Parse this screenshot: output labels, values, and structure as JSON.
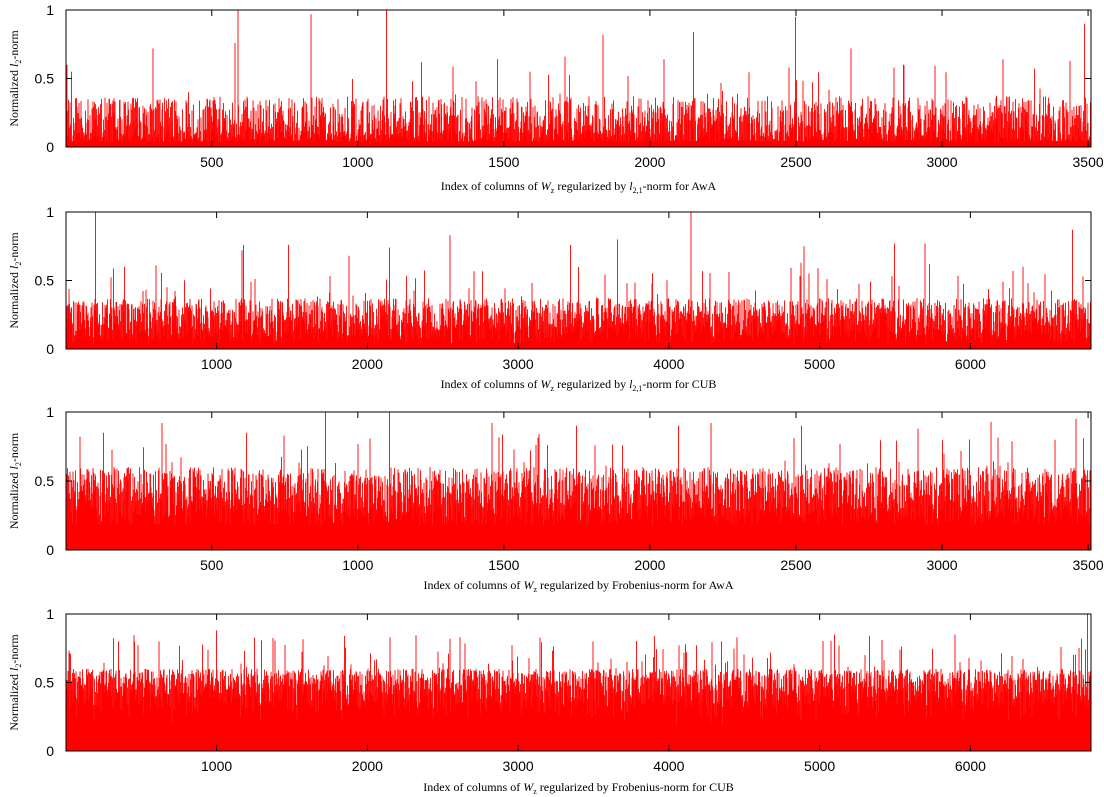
{
  "chart_data": [
    {
      "type": "bar",
      "ylabel": {
        "pre": "Normalized ",
        "var": "l",
        "sub": "2",
        "post": "-norm"
      },
      "xlabel": {
        "pre": "Index of columns of ",
        "var": "W",
        "sub": "z",
        "mid": " regularized by ",
        "var2": "l",
        "sub2": "2,1",
        "post": "-norm for AwA"
      },
      "xlim": [
        1,
        3510
      ],
      "ylim": [
        0,
        1
      ],
      "xticks": [
        "500",
        "1000",
        "1500",
        "2000",
        "2500",
        "3000",
        "3500"
      ],
      "yticks": [
        "0",
        "0.5",
        "1"
      ],
      "color": "#ff0000",
      "profile": "sparse",
      "n": 3510,
      "peaks": [
        [
          5,
          0.6
        ],
        [
          20,
          0.55
        ],
        [
          300,
          0.72
        ],
        [
          590,
          1.0
        ],
        [
          580,
          0.76
        ],
        [
          840,
          0.97
        ],
        [
          1100,
          1.0
        ],
        [
          1220,
          0.62
        ],
        [
          1480,
          0.64
        ],
        [
          1590,
          0.55
        ],
        [
          1710,
          0.66
        ],
        [
          1840,
          0.82
        ],
        [
          2050,
          0.64
        ],
        [
          2150,
          0.84
        ],
        [
          2500,
          0.95
        ],
        [
          2690,
          0.72
        ],
        [
          2870,
          0.6
        ],
        [
          3210,
          0.64
        ],
        [
          3440,
          0.63
        ],
        [
          3490,
          0.9
        ]
      ]
    },
    {
      "type": "bar",
      "ylabel": {
        "pre": "Normalized ",
        "var": "l",
        "sub": "2",
        "post": "-norm"
      },
      "xlabel": {
        "pre": "Index of columns of ",
        "var": "W",
        "sub": "z",
        "mid": " regularized by ",
        "var2": "l",
        "sub2": "2,1",
        "post": "-norm for CUB"
      },
      "xlim": [
        1,
        6800
      ],
      "ylim": [
        0,
        1
      ],
      "xticks": [
        "1000",
        "2000",
        "3000",
        "4000",
        "5000",
        "6000"
      ],
      "yticks": [
        "0",
        "0.5",
        "1"
      ],
      "color": "#ff0000",
      "profile": "sparse",
      "n": 6800,
      "peaks": [
        [
          200,
          1.0
        ],
        [
          390,
          0.6
        ],
        [
          600,
          0.61
        ],
        [
          1180,
          0.76
        ],
        [
          1170,
          0.72
        ],
        [
          1480,
          0.76
        ],
        [
          1880,
          0.68
        ],
        [
          2150,
          0.74
        ],
        [
          2550,
          0.83
        ],
        [
          3350,
          0.76
        ],
        [
          3660,
          0.8
        ],
        [
          4150,
          1.0
        ],
        [
          4900,
          0.75
        ],
        [
          4880,
          0.63
        ],
        [
          5500,
          0.77
        ],
        [
          5700,
          0.77
        ],
        [
          5730,
          0.62
        ],
        [
          6350,
          0.6
        ],
        [
          6680,
          0.87
        ]
      ]
    },
    {
      "type": "bar",
      "ylabel": {
        "pre": "Normalized ",
        "var": "l",
        "sub": "2",
        "post": "-norm"
      },
      "xlabel": {
        "pre": "Index of columns of ",
        "var": "W",
        "sub": "z",
        "mid": " regularized by Frobenius-norm for AwA",
        "var2": "",
        "sub2": "",
        "post": ""
      },
      "xlim": [
        1,
        3510
      ],
      "ylim": [
        0,
        1
      ],
      "xticks": [
        "500",
        "1000",
        "1500",
        "2000",
        "2500",
        "3000",
        "3500"
      ],
      "yticks": [
        "0",
        "0.5",
        "1"
      ],
      "color": "#ff0000",
      "profile": "dense",
      "n": 3510,
      "peaks": [
        [
          50,
          0.82
        ],
        [
          130,
          0.85
        ],
        [
          330,
          0.92
        ],
        [
          620,
          0.85
        ],
        [
          890,
          1.0
        ],
        [
          1110,
          1.0
        ],
        [
          1460,
          0.92
        ],
        [
          1750,
          0.9
        ],
        [
          2100,
          0.9
        ],
        [
          2210,
          0.92
        ],
        [
          2520,
          0.9
        ],
        [
          2920,
          0.88
        ],
        [
          3170,
          0.93
        ],
        [
          3460,
          0.95
        ]
      ]
    },
    {
      "type": "bar",
      "ylabel": {
        "pre": "Normalized ",
        "var": "l",
        "sub": "2",
        "post": "-norm"
      },
      "xlabel": {
        "pre": "Index of columns of ",
        "var": "W",
        "sub": "z",
        "mid": " regularized by Frobenius-norm for CUB",
        "var2": "",
        "sub2": "",
        "post": ""
      },
      "xlim": [
        1,
        6800
      ],
      "ylim": [
        0,
        1
      ],
      "xticks": [
        "1000",
        "2000",
        "3000",
        "4000",
        "5000",
        "6000"
      ],
      "yticks": [
        "0",
        "0.5",
        "1"
      ],
      "color": "#ff0000",
      "profile": "dense",
      "n": 6800,
      "peaks": [
        [
          1000,
          0.88
        ],
        [
          350,
          0.8
        ],
        [
          620,
          0.8
        ],
        [
          2550,
          0.82
        ],
        [
          3500,
          0.8
        ],
        [
          4350,
          0.8
        ],
        [
          5100,
          0.85
        ],
        [
          5900,
          0.85
        ],
        [
          6780,
          1.0
        ],
        [
          6740,
          0.82
        ]
      ]
    }
  ]
}
